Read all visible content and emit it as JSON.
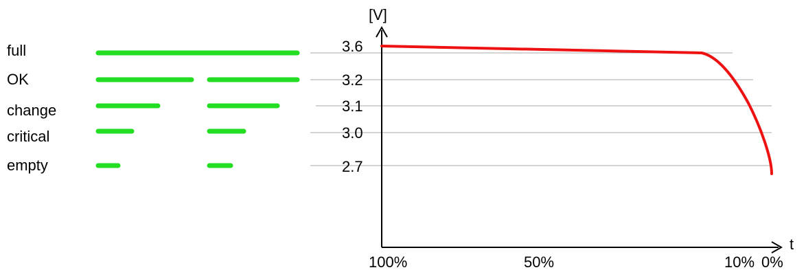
{
  "levels": [
    {
      "label": "full"
    },
    {
      "label": "OK"
    },
    {
      "label": "change"
    },
    {
      "label": "critical"
    },
    {
      "label": "empty"
    }
  ],
  "indicator_color": "#22dd22",
  "curve_color": "#ee1111",
  "chart_data": {
    "type": "line",
    "ylabel": "[V]",
    "xlabel": "t",
    "y_ticks": [
      "3.6",
      "3.2",
      "3.1",
      "3.0",
      "2.7"
    ],
    "x_ticks": [
      "100%",
      "50%",
      "10%",
      "0%"
    ],
    "series": [
      {
        "x": [
          "100%",
          "10%",
          "8%",
          "5%",
          "3%",
          "1%",
          "0%"
        ],
        "values": [
          3.6,
          3.55,
          3.5,
          3.35,
          3.15,
          2.95,
          2.7
        ]
      }
    ]
  }
}
